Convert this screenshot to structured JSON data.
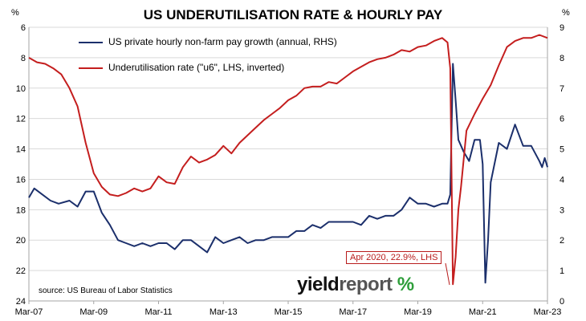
{
  "title": "US UNDERUTILISATION RATE & HOURLY PAY",
  "unit_left": "%",
  "unit_right": "%",
  "source": "source: US Bureau of Labor Statistics",
  "brand": {
    "part1": "yield",
    "part2": "report",
    "part3": " %"
  },
  "annotation": "Apr 2020, 22.9%, LHS",
  "colors": {
    "pay": "#1b2f6b",
    "u6": "#c41e1e",
    "grid": "#d9d9d9",
    "text": "#000000"
  },
  "chart_data": {
    "type": "line",
    "title": "US UNDERUTILISATION RATE & HOURLY PAY",
    "x_ticks": [
      "Mar-07",
      "Mar-09",
      "Mar-11",
      "Mar-13",
      "Mar-15",
      "Mar-17",
      "Mar-19",
      "Mar-21",
      "Mar-23"
    ],
    "x_range": [
      "2007-03",
      "2023-03"
    ],
    "y_left": {
      "label": "%",
      "min": 6,
      "max": 24,
      "inverted": true,
      "ticks": [
        6,
        8,
        10,
        12,
        14,
        16,
        18,
        20,
        22,
        24
      ]
    },
    "y_right": {
      "label": "%",
      "min": 0,
      "max": 9,
      "ticks": [
        0,
        1,
        2,
        3,
        4,
        5,
        6,
        7,
        8,
        9
      ]
    },
    "grid": true,
    "legend": "top-left",
    "series": [
      {
        "name": "US private hourly non-farm pay growth (annual, RHS)",
        "axis": "right",
        "points": [
          [
            "2007-03",
            3.4
          ],
          [
            "2007-05",
            3.7
          ],
          [
            "2007-08",
            3.5
          ],
          [
            "2007-11",
            3.3
          ],
          [
            "2008-02",
            3.2
          ],
          [
            "2008-06",
            3.3
          ],
          [
            "2008-09",
            3.1
          ],
          [
            "2008-12",
            3.6
          ],
          [
            "2009-03",
            3.6
          ],
          [
            "2009-06",
            2.9
          ],
          [
            "2009-09",
            2.5
          ],
          [
            "2009-12",
            2.0
          ],
          [
            "2010-03",
            1.9
          ],
          [
            "2010-06",
            1.8
          ],
          [
            "2010-09",
            1.9
          ],
          [
            "2010-12",
            1.8
          ],
          [
            "2011-03",
            1.9
          ],
          [
            "2011-06",
            1.9
          ],
          [
            "2011-09",
            1.7
          ],
          [
            "2011-12",
            2.0
          ],
          [
            "2012-03",
            2.0
          ],
          [
            "2012-06",
            1.8
          ],
          [
            "2012-09",
            1.6
          ],
          [
            "2012-12",
            2.1
          ],
          [
            "2013-03",
            1.9
          ],
          [
            "2013-06",
            2.0
          ],
          [
            "2013-09",
            2.1
          ],
          [
            "2013-12",
            1.9
          ],
          [
            "2014-03",
            2.0
          ],
          [
            "2014-06",
            2.0
          ],
          [
            "2014-09",
            2.1
          ],
          [
            "2014-12",
            2.1
          ],
          [
            "2015-03",
            2.1
          ],
          [
            "2015-06",
            2.3
          ],
          [
            "2015-09",
            2.3
          ],
          [
            "2015-12",
            2.5
          ],
          [
            "2016-03",
            2.4
          ],
          [
            "2016-06",
            2.6
          ],
          [
            "2016-09",
            2.6
          ],
          [
            "2016-12",
            2.6
          ],
          [
            "2017-03",
            2.6
          ],
          [
            "2017-06",
            2.5
          ],
          [
            "2017-09",
            2.8
          ],
          [
            "2017-12",
            2.7
          ],
          [
            "2018-03",
            2.8
          ],
          [
            "2018-06",
            2.8
          ],
          [
            "2018-09",
            3.0
          ],
          [
            "2018-12",
            3.4
          ],
          [
            "2019-03",
            3.2
          ],
          [
            "2019-06",
            3.2
          ],
          [
            "2019-09",
            3.1
          ],
          [
            "2019-12",
            3.2
          ],
          [
            "2020-02",
            3.2
          ],
          [
            "2020-03",
            3.5
          ],
          [
            "2020-04",
            7.8
          ],
          [
            "2020-05",
            6.6
          ],
          [
            "2020-06",
            5.3
          ],
          [
            "2020-08",
            4.9
          ],
          [
            "2020-10",
            4.6
          ],
          [
            "2020-12",
            5.3
          ],
          [
            "2021-02",
            5.3
          ],
          [
            "2021-03",
            4.5
          ],
          [
            "2021-04",
            0.6
          ],
          [
            "2021-05",
            2.0
          ],
          [
            "2021-06",
            3.9
          ],
          [
            "2021-09",
            5.2
          ],
          [
            "2021-12",
            5.0
          ],
          [
            "2022-03",
            5.8
          ],
          [
            "2022-06",
            5.1
          ],
          [
            "2022-09",
            5.1
          ],
          [
            "2022-12",
            4.6
          ],
          [
            "2023-01",
            4.4
          ],
          [
            "2023-02",
            4.7
          ],
          [
            "2023-03",
            4.4
          ]
        ]
      },
      {
        "name": "Underutilisation rate (\"u6\", LHS, inverted)",
        "axis": "left",
        "points": [
          [
            "2007-03",
            8.0
          ],
          [
            "2007-06",
            8.3
          ],
          [
            "2007-09",
            8.4
          ],
          [
            "2007-12",
            8.7
          ],
          [
            "2008-03",
            9.1
          ],
          [
            "2008-06",
            10.0
          ],
          [
            "2008-09",
            11.2
          ],
          [
            "2008-12",
            13.6
          ],
          [
            "2009-03",
            15.6
          ],
          [
            "2009-06",
            16.5
          ],
          [
            "2009-09",
            17.0
          ],
          [
            "2009-12",
            17.1
          ],
          [
            "2010-03",
            16.9
          ],
          [
            "2010-06",
            16.6
          ],
          [
            "2010-09",
            16.8
          ],
          [
            "2010-12",
            16.6
          ],
          [
            "2011-03",
            15.8
          ],
          [
            "2011-06",
            16.2
          ],
          [
            "2011-09",
            16.3
          ],
          [
            "2011-12",
            15.2
          ],
          [
            "2012-03",
            14.5
          ],
          [
            "2012-06",
            14.9
          ],
          [
            "2012-09",
            14.7
          ],
          [
            "2012-12",
            14.4
          ],
          [
            "2013-03",
            13.8
          ],
          [
            "2013-06",
            14.3
          ],
          [
            "2013-09",
            13.6
          ],
          [
            "2013-12",
            13.1
          ],
          [
            "2014-03",
            12.6
          ],
          [
            "2014-06",
            12.1
          ],
          [
            "2014-09",
            11.7
          ],
          [
            "2014-12",
            11.3
          ],
          [
            "2015-03",
            10.8
          ],
          [
            "2015-06",
            10.5
          ],
          [
            "2015-09",
            10.0
          ],
          [
            "2015-12",
            9.9
          ],
          [
            "2016-03",
            9.9
          ],
          [
            "2016-06",
            9.6
          ],
          [
            "2016-09",
            9.7
          ],
          [
            "2016-12",
            9.3
          ],
          [
            "2017-03",
            8.9
          ],
          [
            "2017-06",
            8.6
          ],
          [
            "2017-09",
            8.3
          ],
          [
            "2017-12",
            8.1
          ],
          [
            "2018-03",
            8.0
          ],
          [
            "2018-06",
            7.8
          ],
          [
            "2018-09",
            7.5
          ],
          [
            "2018-12",
            7.6
          ],
          [
            "2019-03",
            7.3
          ],
          [
            "2019-06",
            7.2
          ],
          [
            "2019-09",
            6.9
          ],
          [
            "2019-12",
            6.7
          ],
          [
            "2020-02",
            7.0
          ],
          [
            "2020-03",
            8.7
          ],
          [
            "2020-04",
            22.9
          ],
          [
            "2020-05",
            21.1
          ],
          [
            "2020-06",
            18.0
          ],
          [
            "2020-07",
            16.5
          ],
          [
            "2020-09",
            12.8
          ],
          [
            "2020-12",
            11.7
          ],
          [
            "2021-03",
            10.7
          ],
          [
            "2021-06",
            9.8
          ],
          [
            "2021-09",
            8.5
          ],
          [
            "2021-12",
            7.3
          ],
          [
            "2022-03",
            6.9
          ],
          [
            "2022-06",
            6.7
          ],
          [
            "2022-09",
            6.7
          ],
          [
            "2022-12",
            6.5
          ],
          [
            "2023-03",
            6.7
          ]
        ]
      }
    ]
  }
}
